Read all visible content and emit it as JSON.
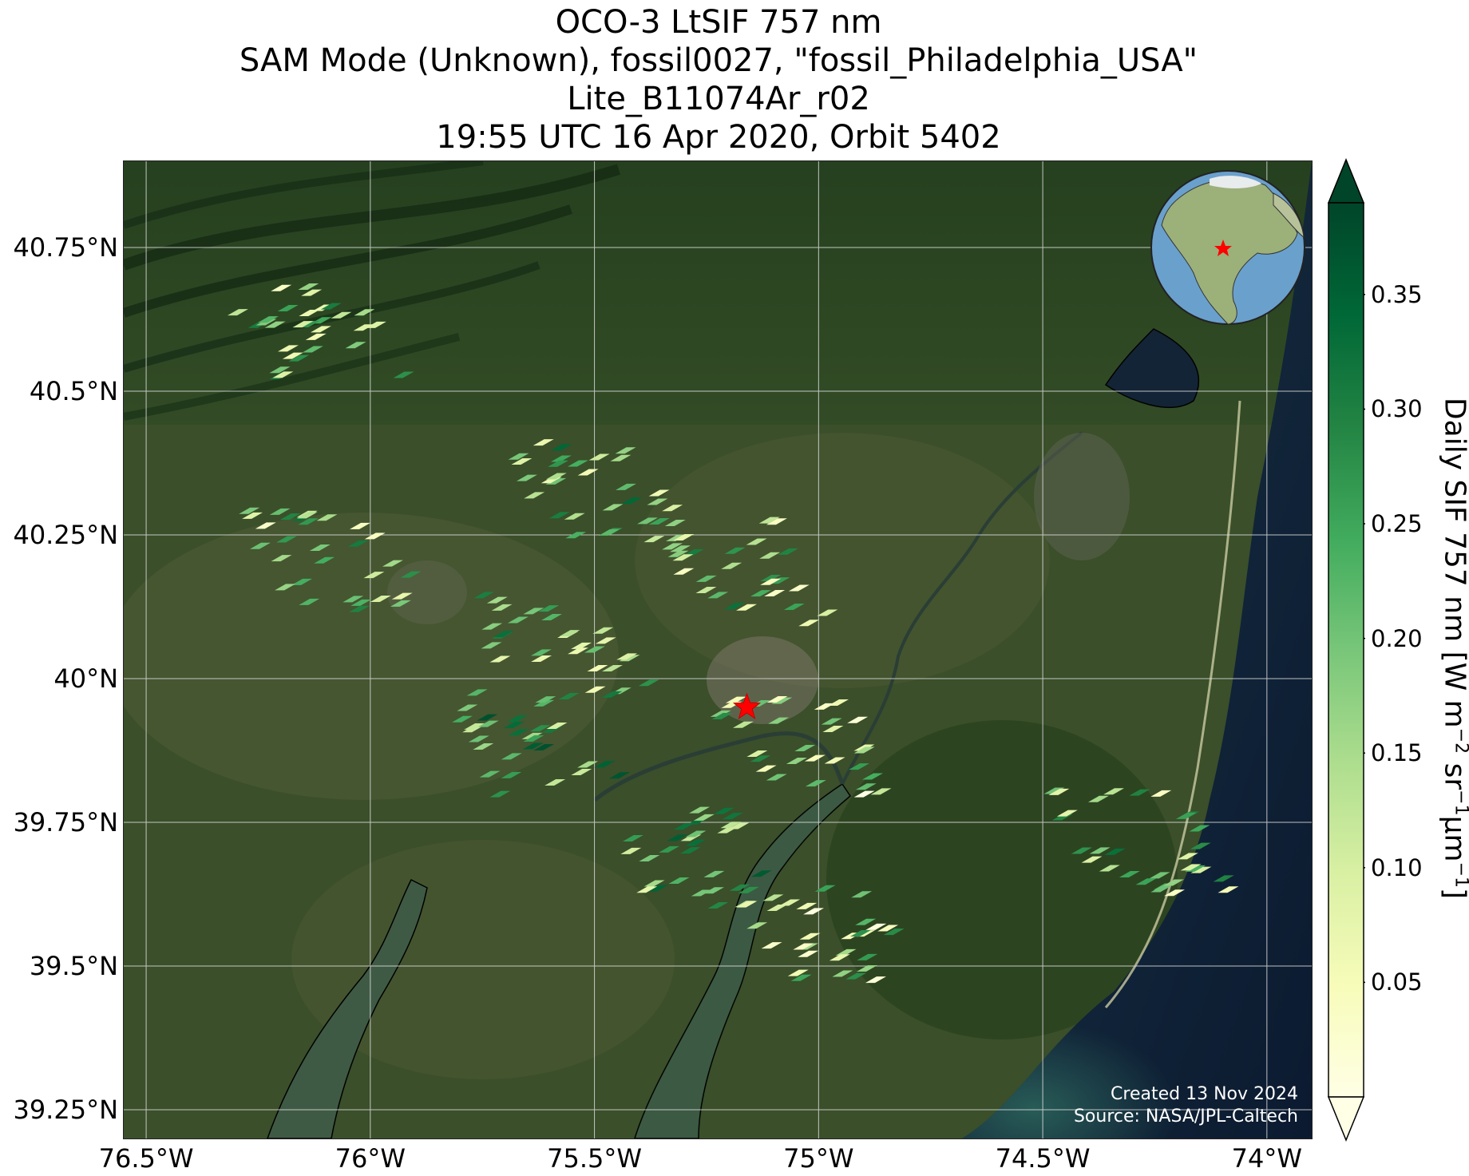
{
  "title": {
    "line1": "OCO-3 LtSIF 757 nm",
    "line2": "SAM Mode (Unknown), fossil0027, \"fossil_Philadelphia_USA\"",
    "line3": "Lite_B11074Ar_r02",
    "line4": "19:55 UTC 16 Apr 2020, Orbit 5402"
  },
  "map": {
    "lat_ticks": [
      "40.75°N",
      "40.5°N",
      "40.25°N",
      "40°N",
      "39.75°N",
      "39.5°N",
      "39.25°N"
    ],
    "lat_values": [
      40.75,
      40.5,
      40.25,
      40.0,
      39.75,
      39.5,
      39.25
    ],
    "lon_ticks": [
      "76.5°W",
      "76°W",
      "75.5°W",
      "75°W",
      "74.5°W",
      "74°W"
    ],
    "lon_values": [
      -76.5,
      -76.0,
      -75.5,
      -75.0,
      -74.5,
      -74.0
    ],
    "lat_range": [
      39.2,
      40.9
    ],
    "lon_range": [
      -76.55,
      -73.9
    ],
    "target_marker": {
      "name": "fossil_Philadelphia_USA",
      "lon": -75.16,
      "lat": 39.95,
      "color": "#ff0000"
    },
    "gridlines": true,
    "basemap": "satellite imagery",
    "inset": "globe locator (North America) with target star"
  },
  "credits": {
    "created": "Created 13 Nov 2024",
    "source": "Source: NASA/JPL-Caltech"
  },
  "colorbar": {
    "label_main": "Daily SIF 757 nm [W m",
    "label_exp1": "−2",
    "label_sr": " sr",
    "label_exp2": "−1",
    "label_um": "μm",
    "label_exp3": "−1",
    "label_end": "]",
    "ticks": [
      "0.05",
      "0.10",
      "0.15",
      "0.20",
      "0.25",
      "0.30",
      "0.35"
    ],
    "tick_values": [
      0.05,
      0.1,
      0.15,
      0.2,
      0.25,
      0.3,
      0.35
    ],
    "range": [
      0.0,
      0.39
    ],
    "extend": "both",
    "colormap": "YlGn",
    "stops": [
      "#ffffe5",
      "#f7fcb9",
      "#d9f0a3",
      "#addd8e",
      "#78c679",
      "#41ab5d",
      "#238443",
      "#006837",
      "#004529"
    ]
  },
  "chart_data": {
    "type": "scatter",
    "title": "OCO-3 LtSIF 757 nm",
    "xlabel": "",
    "ylabel": "",
    "x_range": [
      -76.55,
      -73.9
    ],
    "y_range": [
      39.2,
      40.9
    ],
    "series": [
      {
        "name": "Daily SIF 757 nm",
        "description": "footprint clusters (lon, lat, approx mean SIF)",
        "points": [
          {
            "lon": -76.15,
            "lat": 40.6,
            "sif": 0.17
          },
          {
            "lon": -76.1,
            "lat": 40.2,
            "sif": 0.18
          },
          {
            "lon": -75.52,
            "lat": 40.32,
            "sif": 0.2
          },
          {
            "lon": -75.6,
            "lat": 40.05,
            "sif": 0.2
          },
          {
            "lon": -75.65,
            "lat": 39.88,
            "sif": 0.24
          },
          {
            "lon": -75.2,
            "lat": 40.18,
            "sif": 0.18
          },
          {
            "lon": -75.05,
            "lat": 39.88,
            "sif": 0.15
          },
          {
            "lon": -75.3,
            "lat": 39.68,
            "sif": 0.22
          },
          {
            "lon": -75.0,
            "lat": 39.55,
            "sif": 0.14
          },
          {
            "lon": -74.3,
            "lat": 39.71,
            "sif": 0.18
          }
        ]
      }
    ]
  }
}
